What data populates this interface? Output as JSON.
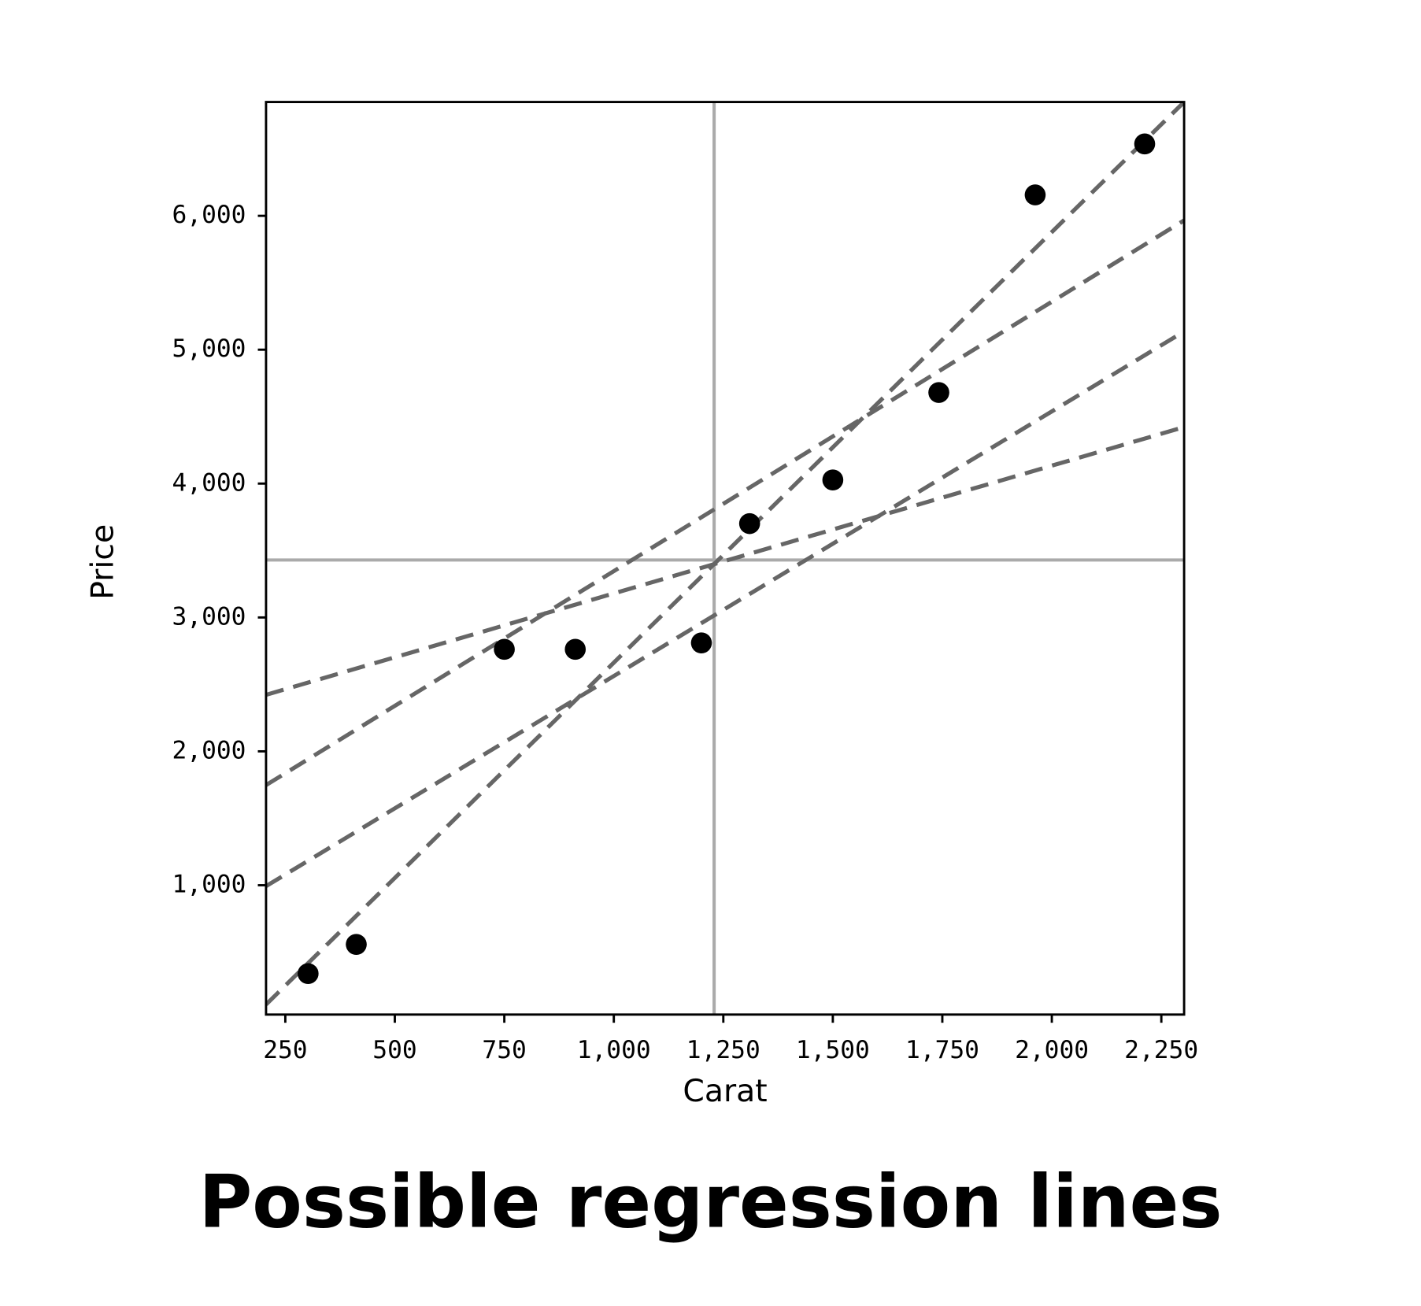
{
  "chart_data": {
    "type": "scatter",
    "title": "Possible regression lines",
    "x_label": "Carat",
    "y_label": "Price",
    "x": [
      302,
      412,
      750,
      912,
      1200,
      1310,
      1500,
      1742,
      1962,
      2212
    ],
    "values": [
      340,
      558,
      2762,
      2762,
      2810,
      3701,
      4027,
      4680,
      6156,
      6537
    ],
    "color": "#000000",
    "lines": [
      {
        "x": [
          206,
          2302
        ],
        "values": [
          109,
          6850
        ],
        "color": "#666666"
      },
      {
        "x": [
          206,
          2302
        ],
        "values": [
          1748,
          5966
        ],
        "color": "#666666"
      },
      {
        "x": [
          206,
          2302
        ],
        "values": [
          993,
          5136
        ],
        "color": "#666666"
      },
      {
        "x": [
          206,
          2302
        ],
        "values": [
          2422,
          4422
        ],
        "color": "#666666"
      }
    ],
    "mean_x": 1229,
    "mean_y": 3429,
    "mean_color": "#aaaaaa",
    "xlim": [
      206,
      2302
    ],
    "ylim": [
      34,
      6850
    ],
    "xticks": [
      {
        "value": 250,
        "label": "250"
      },
      {
        "value": 500,
        "label": "500"
      },
      {
        "value": 750,
        "label": "750"
      },
      {
        "value": 1000,
        "label": "1,000"
      },
      {
        "value": 1250,
        "label": "1,250"
      },
      {
        "value": 1500,
        "label": "1,500"
      },
      {
        "value": 1750,
        "label": "1,750"
      },
      {
        "value": 2000,
        "label": "2,000"
      },
      {
        "value": 2250,
        "label": "2,250"
      }
    ],
    "yticks": [
      {
        "value": 1000,
        "label": "1,000"
      },
      {
        "value": 2000,
        "label": "2,000"
      },
      {
        "value": 3000,
        "label": "3,000"
      },
      {
        "value": 4000,
        "label": "4,000"
      },
      {
        "value": 5000,
        "label": "5,000"
      },
      {
        "value": 6000,
        "label": "6,000"
      }
    ]
  }
}
